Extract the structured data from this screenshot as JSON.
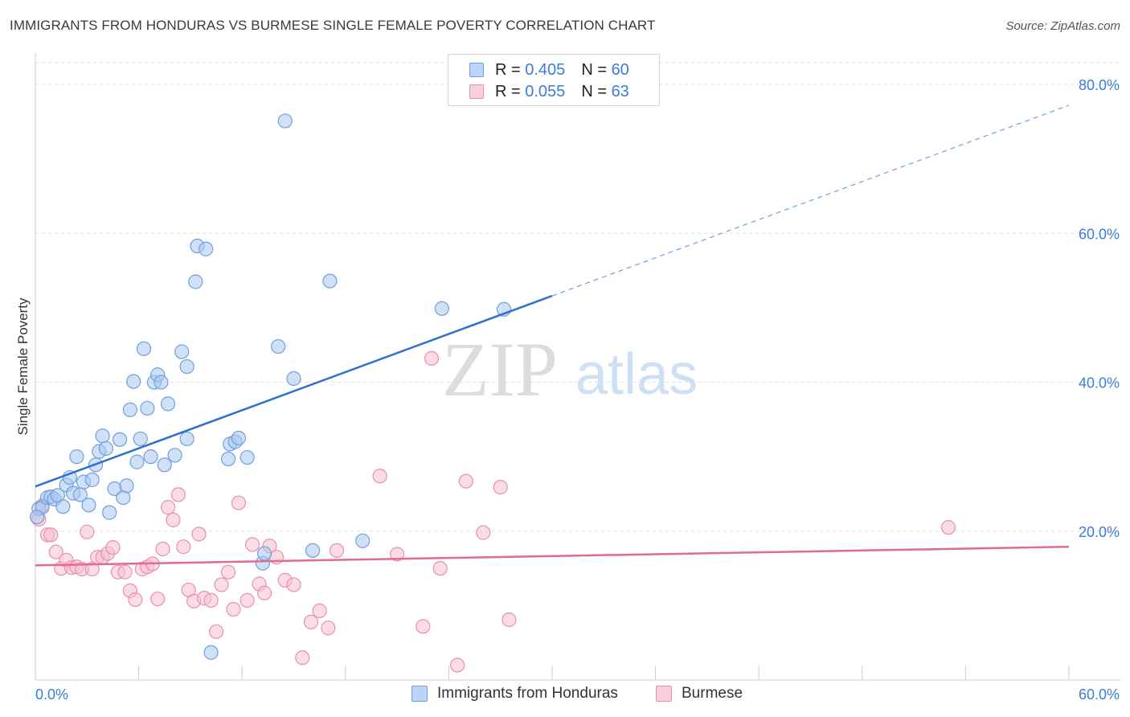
{
  "title": "IMMIGRANTS FROM HONDURAS VS BURMESE SINGLE FEMALE POVERTY CORRELATION CHART",
  "source": "Source: ZipAtlas.com",
  "watermark": {
    "zip": "ZIP",
    "atlas": "atlas"
  },
  "colors": {
    "blue_fill": "#a9c8f0",
    "blue_stroke": "#6f9fde",
    "blue_line": "#2f6fcf",
    "pink_fill": "#f6bfd0",
    "pink_stroke": "#ea8fac",
    "pink_line": "#e46a94",
    "tick_label": "#3b7dd8",
    "grid": "#e2e2e2",
    "axis": "#cccccc"
  },
  "legend": {
    "rows": [
      {
        "r_label": "R = ",
        "r_value": "0.405",
        "n_label": "N = ",
        "n_value": "60"
      },
      {
        "r_label": "R = ",
        "r_value": "0.055",
        "n_label": "N = ",
        "n_value": "63"
      }
    ],
    "series_names": [
      "Immigrants from Honduras",
      "Burmese"
    ]
  },
  "chart_data": {
    "type": "scatter",
    "title": "IMMIGRANTS FROM HONDURAS VS BURMESE SINGLE FEMALE POVERTY CORRELATION CHART",
    "xlabel": "",
    "ylabel": "Single Female Poverty",
    "xlim": [
      0,
      60
    ],
    "ylim": [
      0,
      84
    ],
    "x_tick_labels": [
      "0.0%",
      "60.0%"
    ],
    "y_ticks": [
      20,
      40,
      60,
      80
    ],
    "y_tick_labels": [
      "20.0%",
      "40.0%",
      "60.0%",
      "80.0%"
    ],
    "grid": true,
    "legend_position": "top-center",
    "series": [
      {
        "name": "Immigrants from Honduras",
        "r": 0.405,
        "n": 60,
        "trend": {
          "x0": 0,
          "y0": 26.0,
          "x1": 30,
          "y1": 51.6,
          "dash_to_x": 60,
          "dash_to_y": 77.2
        },
        "points": [
          [
            0.2,
            23.0
          ],
          [
            0.4,
            23.2
          ],
          [
            0.7,
            24.5
          ],
          [
            0.9,
            24.6
          ],
          [
            1.1,
            24.3
          ],
          [
            1.3,
            24.8
          ],
          [
            1.6,
            23.3
          ],
          [
            1.8,
            26.2
          ],
          [
            2.0,
            27.2
          ],
          [
            2.2,
            25.1
          ],
          [
            2.4,
            30.0
          ],
          [
            2.6,
            24.9
          ],
          [
            2.8,
            26.6
          ],
          [
            3.1,
            23.5
          ],
          [
            3.3,
            26.9
          ],
          [
            3.5,
            28.9
          ],
          [
            3.7,
            30.7
          ],
          [
            3.9,
            32.8
          ],
          [
            4.1,
            31.1
          ],
          [
            4.3,
            22.5
          ],
          [
            4.6,
            25.7
          ],
          [
            4.9,
            32.3
          ],
          [
            5.1,
            24.5
          ],
          [
            5.3,
            26.1
          ],
          [
            5.5,
            36.3
          ],
          [
            5.7,
            40.1
          ],
          [
            5.9,
            29.3
          ],
          [
            6.1,
            32.4
          ],
          [
            6.3,
            44.5
          ],
          [
            6.5,
            36.5
          ],
          [
            6.7,
            30.0
          ],
          [
            6.9,
            40.0
          ],
          [
            7.1,
            41.0
          ],
          [
            7.3,
            40.0
          ],
          [
            7.5,
            28.9
          ],
          [
            7.7,
            37.1
          ],
          [
            8.1,
            30.2
          ],
          [
            8.5,
            44.1
          ],
          [
            8.8,
            32.4
          ],
          [
            8.8,
            42.1
          ],
          [
            9.3,
            53.5
          ],
          [
            9.4,
            58.3
          ],
          [
            9.9,
            57.9
          ],
          [
            10.2,
            3.7
          ],
          [
            11.2,
            29.7
          ],
          [
            11.3,
            31.7
          ],
          [
            11.6,
            32.0
          ],
          [
            11.8,
            32.5
          ],
          [
            12.3,
            29.9
          ],
          [
            13.2,
            15.7
          ],
          [
            13.3,
            17.0
          ],
          [
            14.1,
            44.8
          ],
          [
            14.5,
            75.1
          ],
          [
            15.0,
            40.5
          ],
          [
            16.1,
            17.4
          ],
          [
            17.1,
            53.6
          ],
          [
            19.0,
            18.7
          ],
          [
            23.6,
            49.9
          ],
          [
            27.2,
            49.8
          ],
          [
            0.1,
            21.9
          ]
        ]
      },
      {
        "name": "Burmese",
        "r": 0.055,
        "n": 63,
        "trend": {
          "x0": 0,
          "y0": 15.4,
          "x1": 60,
          "y1": 17.9
        },
        "points": [
          [
            0.2,
            21.6
          ],
          [
            0.4,
            23.4
          ],
          [
            0.7,
            19.5
          ],
          [
            0.9,
            19.5
          ],
          [
            1.2,
            17.2
          ],
          [
            1.5,
            15.0
          ],
          [
            1.8,
            16.1
          ],
          [
            2.1,
            15.1
          ],
          [
            2.4,
            15.2
          ],
          [
            2.7,
            14.9
          ],
          [
            3.0,
            19.9
          ],
          [
            3.3,
            14.9
          ],
          [
            3.6,
            16.5
          ],
          [
            3.9,
            16.5
          ],
          [
            4.2,
            17.0
          ],
          [
            4.5,
            17.8
          ],
          [
            4.8,
            14.5
          ],
          [
            5.2,
            14.5
          ],
          [
            5.5,
            12.0
          ],
          [
            5.8,
            10.8
          ],
          [
            6.2,
            14.9
          ],
          [
            6.5,
            15.2
          ],
          [
            6.8,
            15.6
          ],
          [
            7.1,
            10.9
          ],
          [
            7.4,
            17.6
          ],
          [
            7.7,
            23.2
          ],
          [
            8.0,
            21.5
          ],
          [
            8.3,
            24.9
          ],
          [
            8.6,
            17.9
          ],
          [
            8.9,
            12.1
          ],
          [
            9.2,
            10.6
          ],
          [
            9.5,
            19.6
          ],
          [
            9.8,
            11.0
          ],
          [
            10.2,
            10.7
          ],
          [
            10.5,
            6.5
          ],
          [
            10.8,
            12.8
          ],
          [
            11.2,
            14.5
          ],
          [
            11.5,
            9.5
          ],
          [
            11.8,
            23.8
          ],
          [
            12.3,
            10.7
          ],
          [
            12.6,
            18.2
          ],
          [
            13.0,
            12.9
          ],
          [
            13.3,
            11.7
          ],
          [
            13.6,
            18.0
          ],
          [
            14.0,
            16.5
          ],
          [
            14.5,
            13.4
          ],
          [
            15.0,
            12.8
          ],
          [
            15.5,
            3.0
          ],
          [
            16.0,
            7.8
          ],
          [
            16.5,
            9.3
          ],
          [
            17.0,
            7.0
          ],
          [
            17.5,
            17.4
          ],
          [
            20.0,
            27.4
          ],
          [
            21.0,
            16.9
          ],
          [
            22.5,
            7.2
          ],
          [
            23.0,
            43.2
          ],
          [
            23.5,
            15.0
          ],
          [
            24.5,
            2.0
          ],
          [
            25.0,
            26.7
          ],
          [
            26.0,
            19.8
          ],
          [
            27.0,
            25.9
          ],
          [
            27.5,
            8.1
          ],
          [
            53.0,
            20.5
          ]
        ]
      }
    ]
  }
}
